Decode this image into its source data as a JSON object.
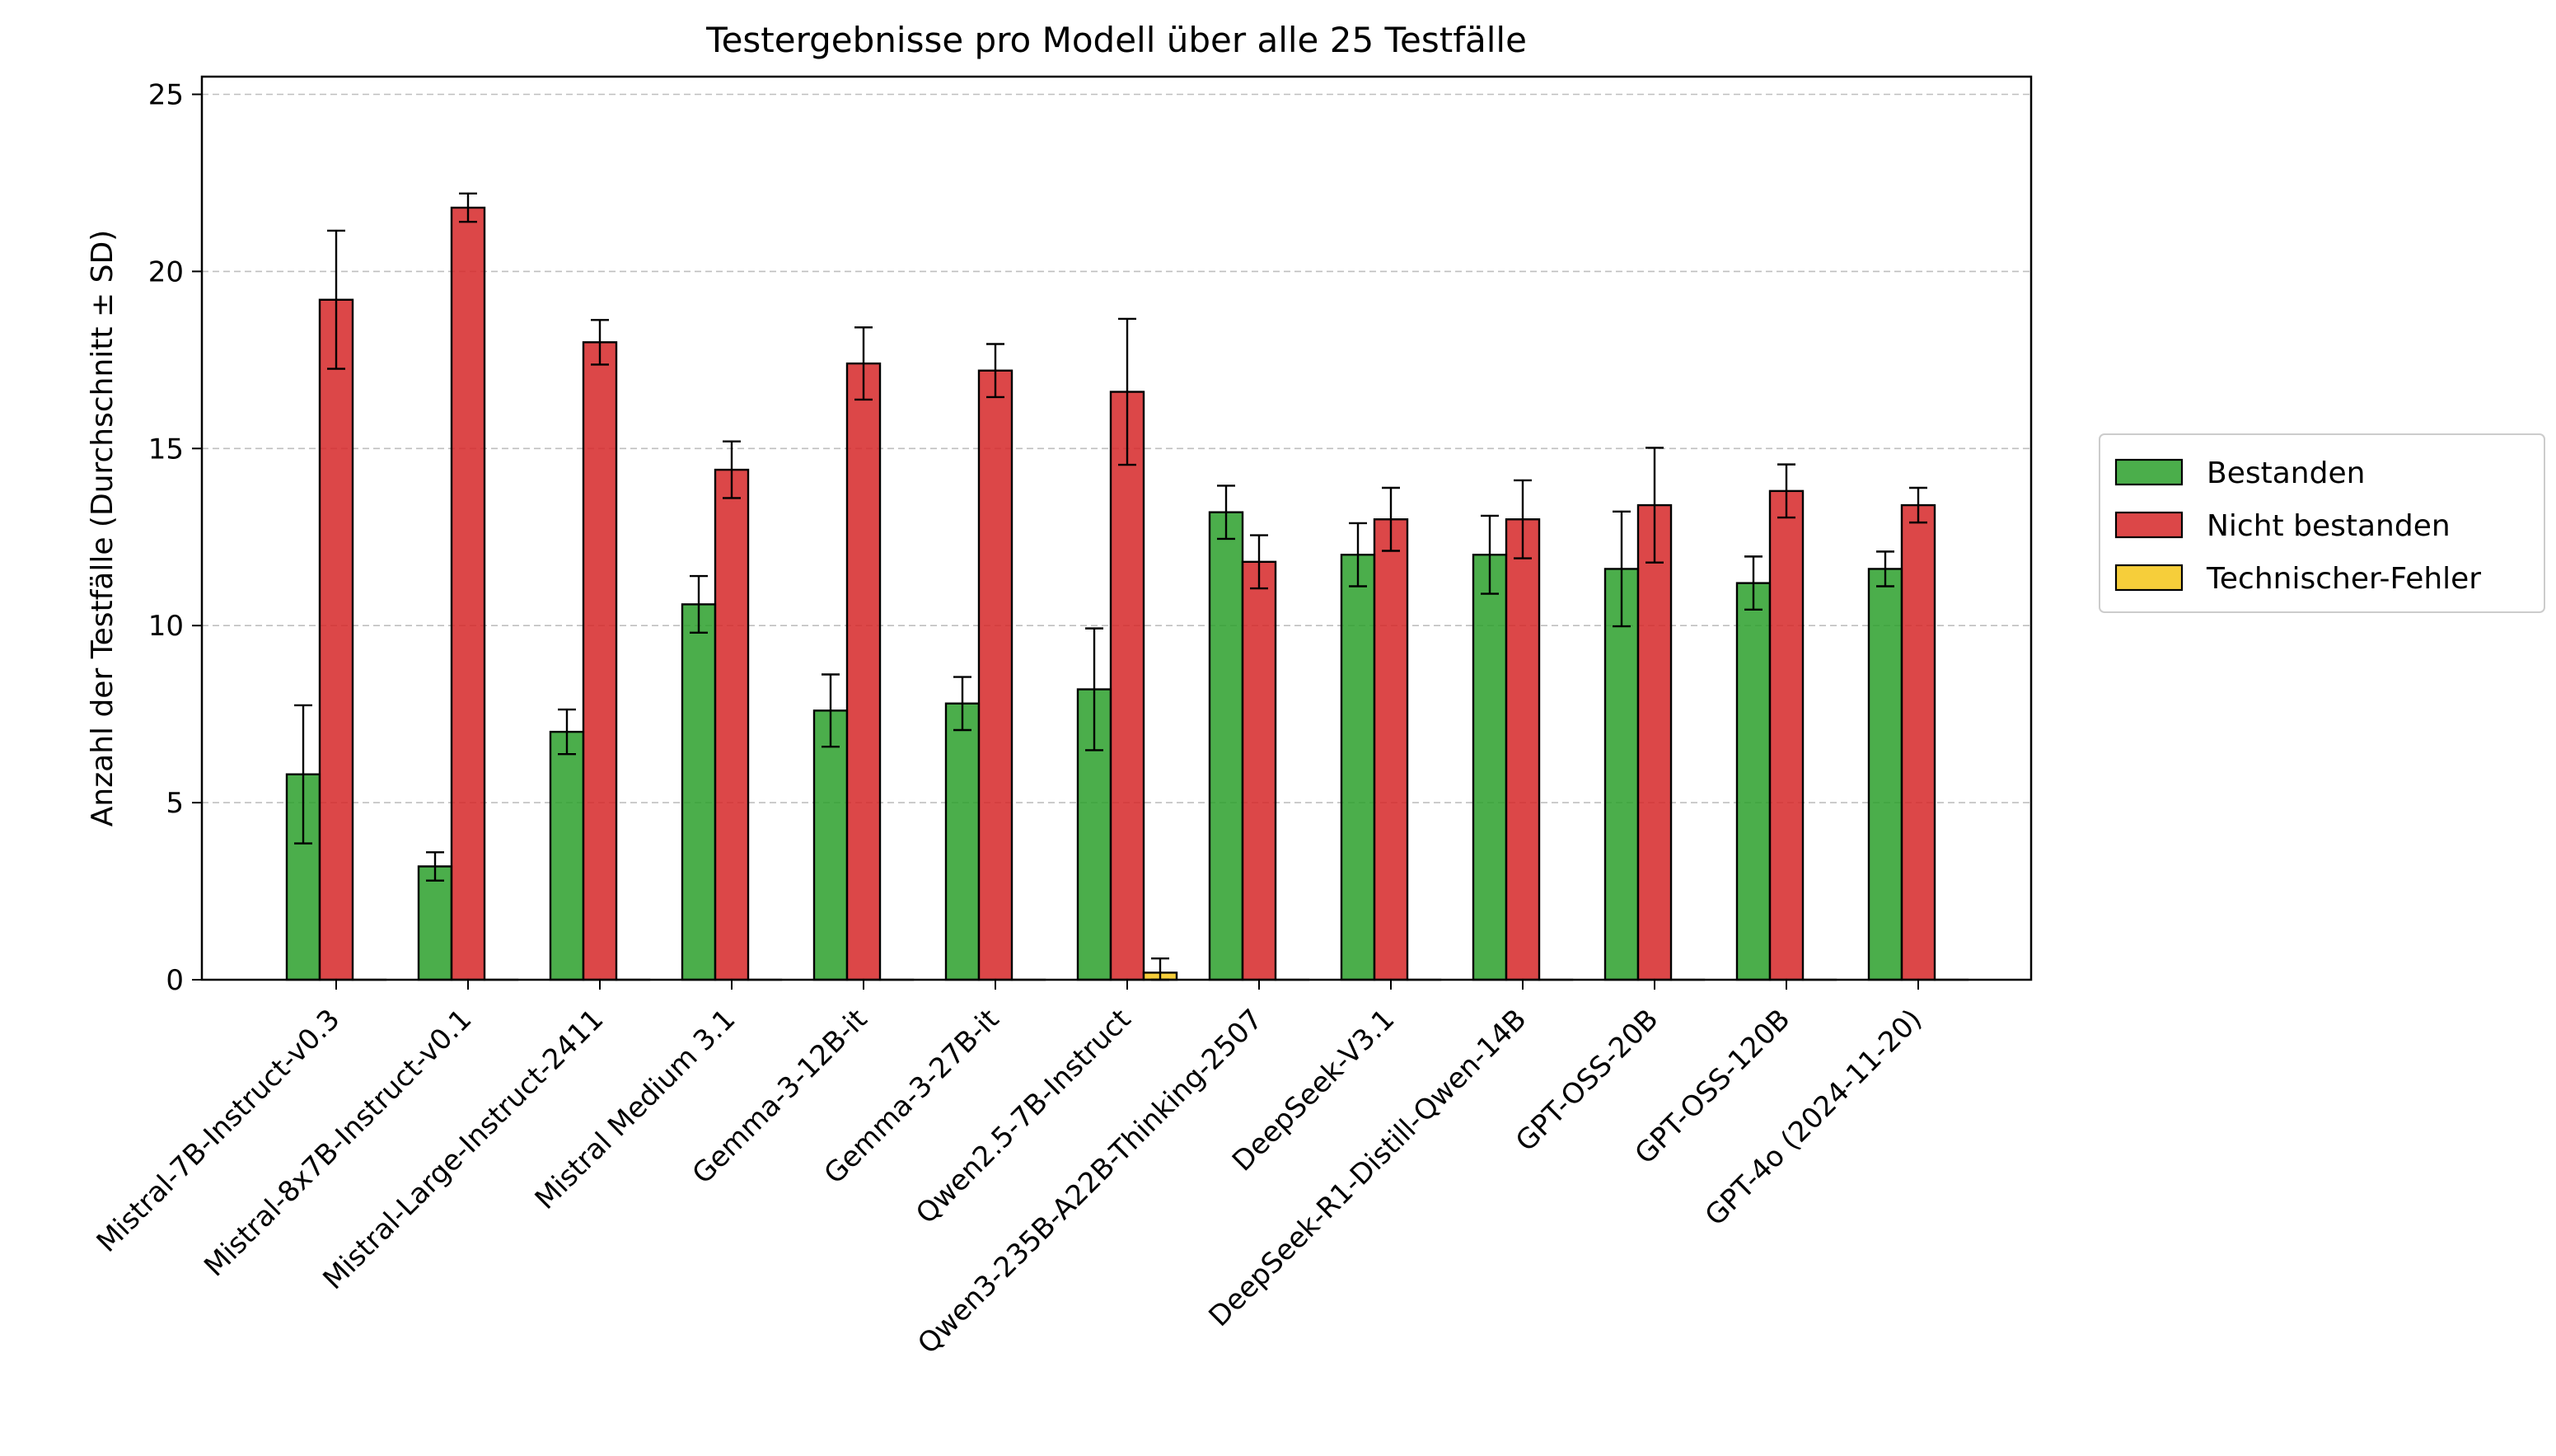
{
  "chart_data": {
    "type": "bar",
    "title": "Testergebnisse pro Modell über alle 25 Testfälle",
    "xlabel": "",
    "ylabel": "Anzahl der Testfälle (Durchschnitt ± SD)",
    "ylim": [
      0,
      25.5
    ],
    "yticks": [
      "0",
      "5",
      "10",
      "15",
      "20",
      "25"
    ],
    "grid": "y-dashed",
    "legend_position": "right",
    "categories": [
      "Mistral-7B-Instruct-v0.3",
      "Mistral-8x7B-Instruct-v0.1",
      "Mistral-Large-Instruct-2411",
      "Mistral Medium 3.1",
      "Gemma-3-12B-it",
      "Gemma-3-27B-it",
      "Qwen2.5-7B-Instruct",
      "Qwen3-235B-A22B-Thinking-2507",
      "DeepSeek-V3.1",
      "DeepSeek-R1-Distill-Qwen-14B",
      "GPT-OSS-20B",
      "GPT-OSS-120B",
      "GPT-4o (2024-11-20)"
    ],
    "series": [
      {
        "name": "Bestanden",
        "color": "#2ca02c",
        "values": [
          5.8,
          3.2,
          7.0,
          10.6,
          7.6,
          7.8,
          8.2,
          13.2,
          12.0,
          12.0,
          11.6,
          11.2,
          11.6
        ],
        "errors": [
          1.95,
          0.4,
          0.63,
          0.8,
          1.02,
          0.75,
          1.72,
          0.75,
          0.89,
          1.1,
          1.62,
          0.75,
          0.49
        ]
      },
      {
        "name": "Nicht bestanden",
        "color": "#d62728",
        "values": [
          19.2,
          21.8,
          18.0,
          14.4,
          17.4,
          17.2,
          16.6,
          11.8,
          13.0,
          13.0,
          13.4,
          13.8,
          13.4
        ],
        "errors": [
          1.95,
          0.4,
          0.63,
          0.8,
          1.02,
          0.75,
          2.06,
          0.75,
          0.89,
          1.1,
          1.62,
          0.75,
          0.49
        ]
      },
      {
        "name": "Technischer-Fehler",
        "color": "#f5c518",
        "values": [
          0,
          0,
          0,
          0,
          0,
          0,
          0.2,
          0,
          0,
          0,
          0,
          0,
          0
        ],
        "errors": [
          0,
          0,
          0,
          0,
          0,
          0,
          0.4,
          0,
          0,
          0,
          0,
          0,
          0
        ]
      }
    ]
  }
}
